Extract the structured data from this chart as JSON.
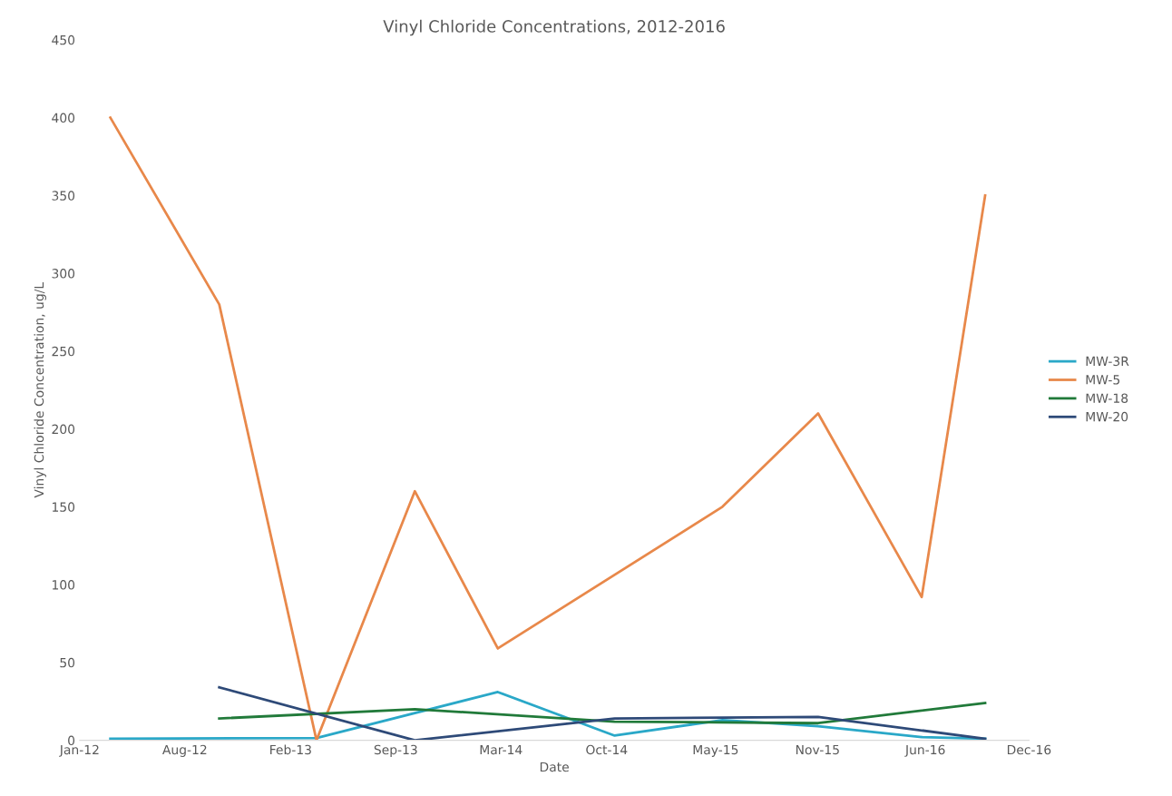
{
  "chart_data": {
    "type": "line",
    "title": "Vinyl Chloride Concentrations, 2012-2016",
    "xlabel": "Date",
    "ylabel": "Vinyl Chloride Concentration, ug/L",
    "series": [
      {
        "name": "MW-3R",
        "color": "#2aa8c8",
        "x": [
          "2012-03-13",
          "2013-04-07",
          "2014-03-16",
          "2014-10-23",
          "2015-05-15",
          "2015-11-12",
          "2016-05-26",
          "2016-09-23"
        ],
        "values": [
          1,
          1.5,
          31,
          3,
          13,
          9,
          2,
          1
        ]
      },
      {
        "name": "MW-5",
        "color": "#e8884a",
        "x": [
          "2012-03-13",
          "2012-10-05",
          "2013-04-07",
          "2013-10-10",
          "2014-03-16",
          "2015-05-15",
          "2015-11-12",
          "2016-05-26",
          "2016-09-23"
        ],
        "values": [
          400,
          280,
          0,
          160,
          59,
          150,
          210,
          92,
          350
        ]
      },
      {
        "name": "MW-18",
        "color": "#217a3a",
        "x": [
          "2012-10-05",
          "2013-10-10",
          "2014-10-23",
          "2015-11-12",
          "2016-09-23"
        ],
        "values": [
          14,
          20,
          12,
          11,
          24
        ]
      },
      {
        "name": "MW-20",
        "color": "#2e4a78",
        "x": [
          "2012-10-05",
          "2013-10-10",
          "2014-10-23",
          "2015-11-12",
          "2016-09-23"
        ],
        "values": [
          34,
          0,
          14,
          15,
          1
        ]
      }
    ],
    "xlim": [
      "2012-01-15",
      "2016-12-15"
    ],
    "xticks": [
      {
        "value": "2012-01-15",
        "label": "Jan-12"
      },
      {
        "value": "2012-08-01",
        "label": "Aug-12"
      },
      {
        "value": "2013-02-17",
        "label": "Feb-13"
      },
      {
        "value": "2013-09-04",
        "label": "Sep-13"
      },
      {
        "value": "2014-03-22",
        "label": "Mar-14"
      },
      {
        "value": "2014-10-08",
        "label": "Oct-14"
      },
      {
        "value": "2015-05-02",
        "label": "May-15"
      },
      {
        "value": "2015-11-11",
        "label": "Nov-15"
      },
      {
        "value": "2016-06-02",
        "label": "Jun-16"
      },
      {
        "value": "2016-12-15",
        "label": "Dec-16"
      }
    ],
    "ylim": [
      0,
      450
    ],
    "yticks": [
      0,
      50,
      100,
      150,
      200,
      250,
      300,
      350,
      400,
      450
    ],
    "grid": false,
    "legend": "right",
    "marker": "none",
    "line_style": "solid"
  }
}
